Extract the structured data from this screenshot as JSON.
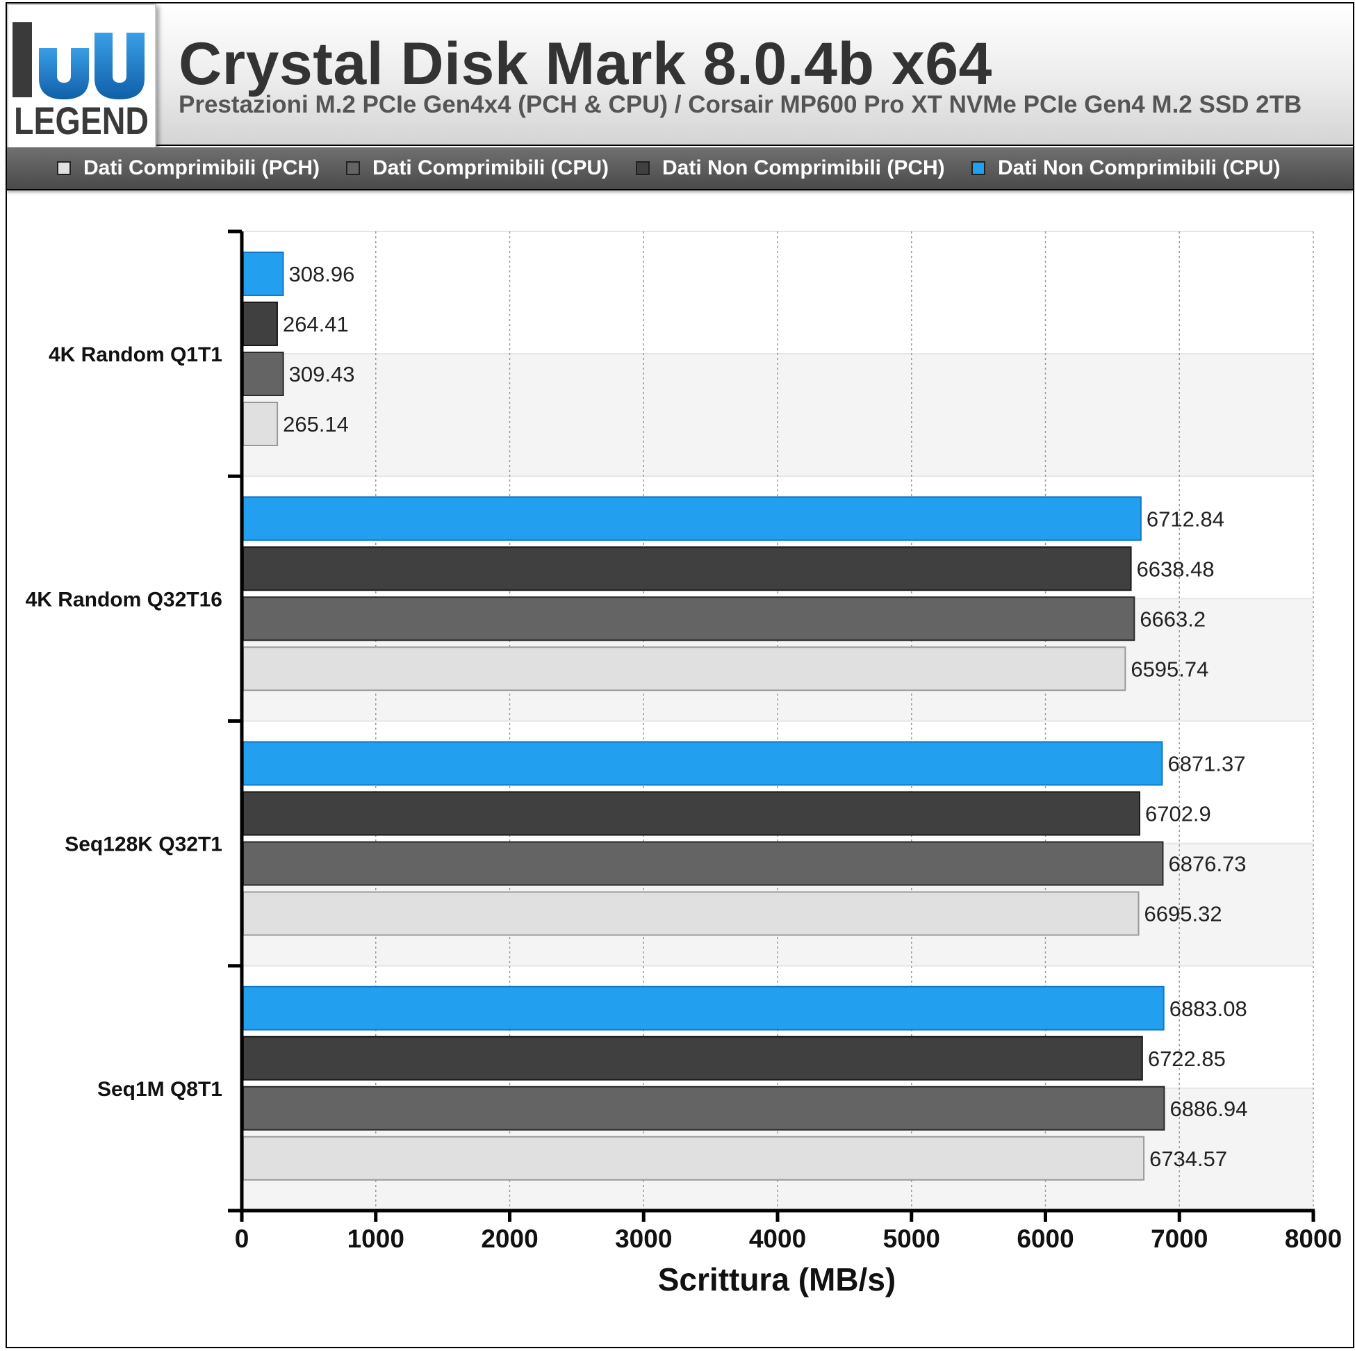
{
  "header": {
    "title": "Crystal Disk Mark 8.0.4b x64",
    "subtitle": "Prestazioni M.2 PCIe Gen4x4 (PCH & CPU) / Corsair MP600 Pro XT NVMe PCIe Gen4 M.2 SSD 2TB"
  },
  "logo": {
    "text": "LEGEND",
    "mark": "hu",
    "colors": {
      "primary": "#1e7ec8",
      "dark": "#3a3a3a"
    }
  },
  "chart_data": {
    "type": "bar",
    "orientation": "horizontal",
    "categories": [
      "4K Random Q1T1",
      "4K Random Q32T16",
      "Seq128K Q32T1",
      "Seq1M Q8T1"
    ],
    "series": [
      {
        "name": "Dati Comprimibili (PCH)",
        "color": "#e0e0e0",
        "border": "#9a9a9a",
        "values": [
          265.14,
          6595.74,
          6695.32,
          6734.57
        ],
        "labels": [
          "265.14",
          "6595.74",
          "6695.32",
          "6734.57"
        ]
      },
      {
        "name": "Dati Comprimibili (CPU)",
        "color": "#646464",
        "border": "#2a2a2a",
        "values": [
          309.43,
          6663.2,
          6876.73,
          6886.94
        ],
        "labels": [
          "309.43",
          "6663.2",
          "6876.73",
          "6886.94"
        ]
      },
      {
        "name": "Dati Non Comprimibili (PCH)",
        "color": "#404040",
        "border": "#1a1a1a",
        "values": [
          264.41,
          6638.48,
          6702.9,
          6722.85
        ],
        "labels": [
          "264.41",
          "6638.48",
          "6702.9",
          "6722.85"
        ]
      },
      {
        "name": "Dati Non Comprimibili (CPU)",
        "color": "#22a0ef",
        "border": "#1278c8",
        "values": [
          308.96,
          6712.84,
          6871.37,
          6883.08
        ],
        "labels": [
          "308.96",
          "6712.84",
          "6871.37",
          "6883.08"
        ]
      }
    ],
    "xlabel": "Scrittura (MB/s)",
    "ylabel": "",
    "xlim": [
      0,
      8000
    ],
    "xticks": [
      0,
      1000,
      2000,
      3000,
      4000,
      5000,
      6000,
      7000,
      8000
    ],
    "xtick_labels": [
      "0",
      "1000",
      "2000",
      "3000",
      "4000",
      "5000",
      "6000",
      "7000",
      "8000"
    ],
    "grid": "vertical-dotted",
    "legend_position": "top"
  }
}
